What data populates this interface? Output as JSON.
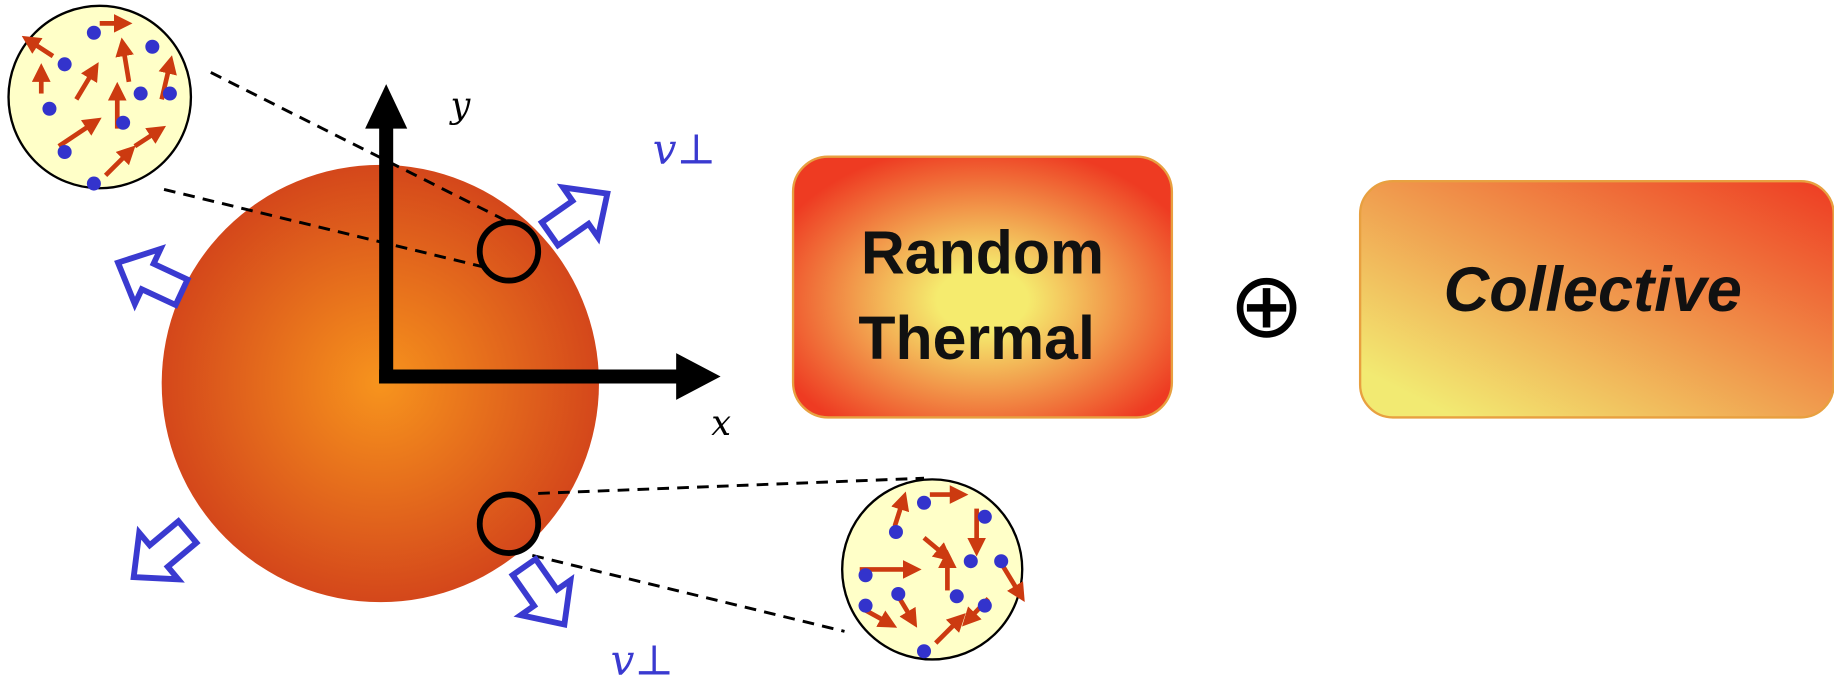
{
  "axes": {
    "y": "y",
    "x": "x"
  },
  "velocity_labels": [
    "v⊥",
    "v⊥"
  ],
  "boxes": [
    {
      "lines": [
        "Random",
        "Thermal"
      ]
    },
    {
      "lines": [
        "Collective"
      ]
    }
  ],
  "operator": "⊕"
}
